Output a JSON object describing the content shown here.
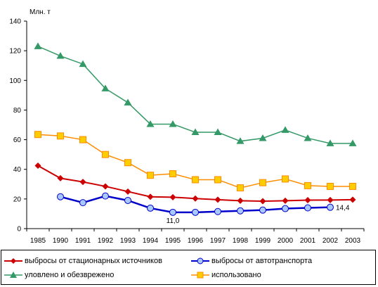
{
  "chart_data": {
    "type": "line",
    "unit_label": "Млн. т",
    "categories": [
      "1985",
      "1990",
      "1991",
      "1992",
      "1993",
      "1994",
      "1995",
      "1996",
      "1997",
      "1998",
      "1999",
      "2000",
      "2001",
      "2002",
      "2003"
    ],
    "ylim": [
      0,
      140
    ],
    "yticks": [
      0,
      20,
      40,
      60,
      80,
      100,
      120,
      140
    ],
    "grid": false,
    "legend_placement": "bottom",
    "series": [
      {
        "name": "выбросы от стационарных источников",
        "color": "#cc0000",
        "marker": "diamond",
        "values": [
          42.5,
          34,
          31.5,
          28.5,
          25,
          21.5,
          21.2,
          20.3,
          19.5,
          18.8,
          18.5,
          18.8,
          19.2,
          19.3,
          19.5
        ]
      },
      {
        "name": "выбросы от автотранспорта",
        "color": "#0000cc",
        "marker": "circle",
        "values": [
          null,
          21.5,
          17.5,
          22,
          19,
          13.8,
          11.0,
          11.0,
          11.5,
          12,
          12.5,
          13.5,
          14,
          14.4,
          null
        ]
      },
      {
        "name": "уловлено и обезврежено",
        "color": "#339966",
        "marker": "triangle",
        "values": [
          123,
          116.5,
          111,
          94.5,
          85,
          70.5,
          70.5,
          65,
          65,
          59,
          61,
          66.5,
          61,
          57.5,
          57.5
        ]
      },
      {
        "name": "использовано",
        "color": "#ff8c00",
        "marker": "square",
        "values": [
          63.5,
          62.5,
          60,
          50,
          44.5,
          36,
          37,
          33,
          33,
          27.5,
          31,
          33.5,
          29,
          28.5,
          28.5
        ]
      }
    ],
    "annotations": [
      {
        "series": 1,
        "index": 6,
        "text": "11,0"
      },
      {
        "series": 1,
        "index": 13,
        "text": "14,4"
      }
    ]
  }
}
